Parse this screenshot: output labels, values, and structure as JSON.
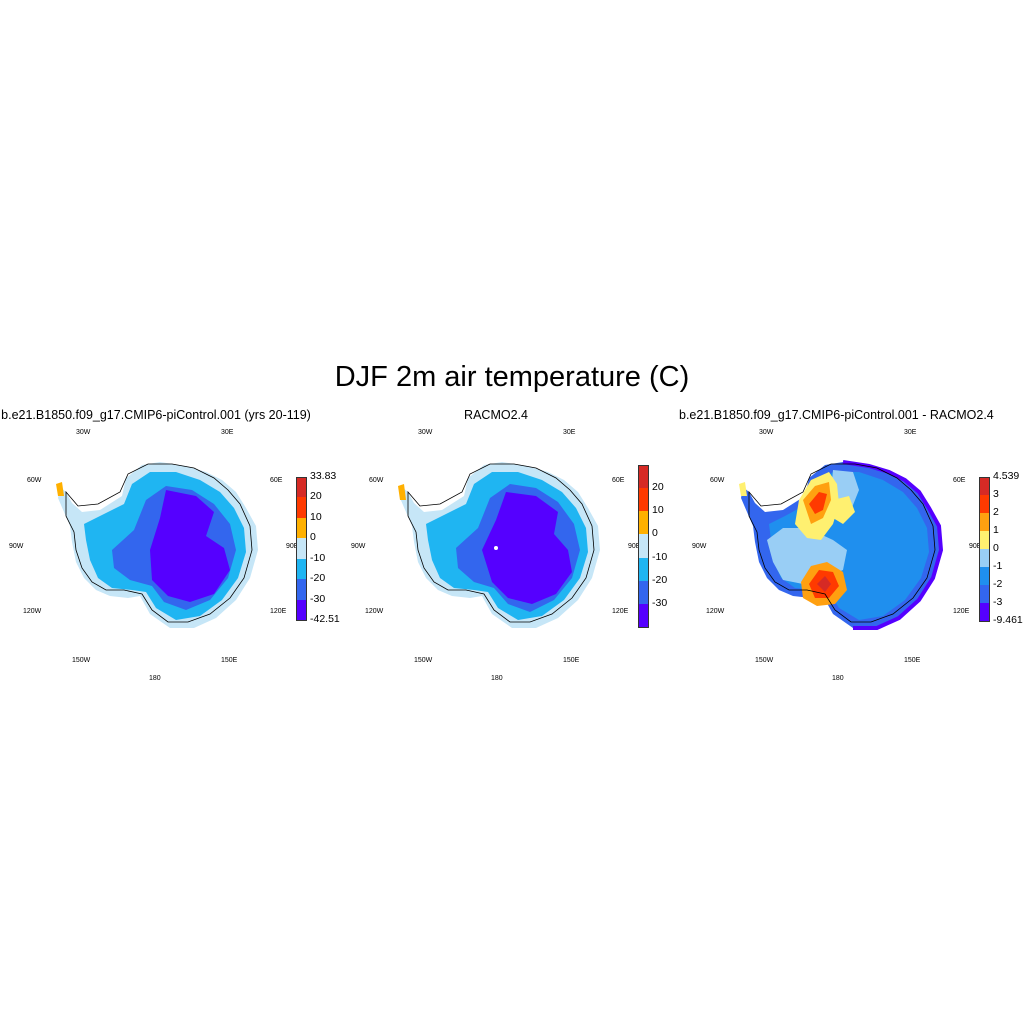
{
  "figure": {
    "title": "DJF 2m air temperature (C)"
  },
  "colors": {
    "temp_scale": [
      "#5500ff",
      "#3366ee",
      "#1fb5f2",
      "#c6e6f7",
      "#ffb000",
      "#ff3a00",
      "#d62a25"
    ],
    "diff_scale": [
      "#5500ff",
      "#3366ee",
      "#1f8fee",
      "#99cef5",
      "#fff070",
      "#ffa010",
      "#ff3a00",
      "#d62a25"
    ]
  },
  "longitude_labels": [
    "30W",
    "30E",
    "60W",
    "60E",
    "90W",
    "90E",
    "120W",
    "120E",
    "150W",
    "150E",
    "180"
  ],
  "panels": [
    {
      "title": "b.e21.B1850.f09_g17.CMIP6-piControl.001 (yrs 20-119)",
      "colorbar": {
        "labels": [
          "33.83",
          "20",
          "10",
          "0",
          "-10",
          "-20",
          "-30",
          "-42.51"
        ]
      }
    },
    {
      "title": "RACMO2.4",
      "colorbar": {
        "labels": [
          "20",
          "10",
          "0",
          "-10",
          "-20",
          "-30"
        ]
      }
    },
    {
      "title": "b.e21.B1850.f09_g17.CMIP6-piControl.001 - RACMO2.4",
      "colorbar": {
        "labels": [
          "4.539",
          "3",
          "2",
          "1",
          "0",
          "-1",
          "-2",
          "-3",
          "-9.461"
        ]
      }
    }
  ]
}
